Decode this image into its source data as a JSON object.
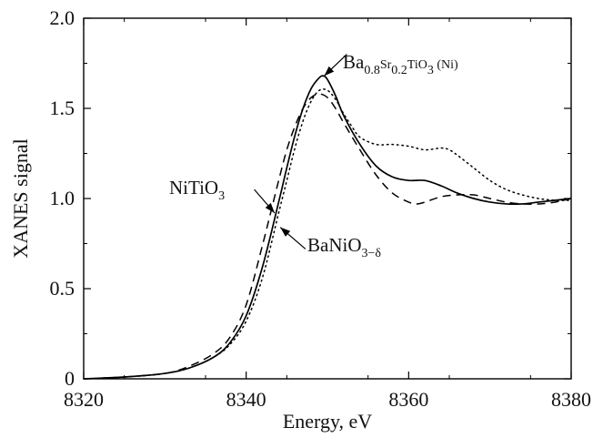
{
  "chart_data": {
    "type": "line",
    "xlabel": "Energy, eV",
    "ylabel": "XANES signal",
    "xlim": [
      8320,
      8380
    ],
    "ylim": [
      0,
      2.0
    ],
    "xticks": [
      8320,
      8340,
      8360,
      8380
    ],
    "yticks": [
      0,
      0.5,
      1.0,
      1.5,
      2.0
    ],
    "xtick_labels": [
      "8320",
      "8340",
      "8360",
      "8380"
    ],
    "ytick_labels": [
      "0",
      "0.5",
      "1.0",
      "1.5",
      "2.0"
    ],
    "grid": false,
    "legend": "none",
    "series": [
      {
        "name": "Ba0.8Sr0.2TiO3 (Ni)",
        "style": "solid",
        "color": "#000000",
        "x": [
          8320,
          8325,
          8330,
          8333,
          8336,
          8338,
          8340,
          8342,
          8344,
          8345,
          8346,
          8347,
          8348,
          8349,
          8349.5,
          8350,
          8351,
          8352,
          8354,
          8356,
          8358,
          8360,
          8362,
          8364,
          8366,
          8368,
          8370,
          8372,
          8374,
          8376,
          8378,
          8380
        ],
        "y": [
          0.0,
          0.01,
          0.03,
          0.06,
          0.12,
          0.2,
          0.35,
          0.62,
          0.98,
          1.17,
          1.35,
          1.5,
          1.61,
          1.67,
          1.68,
          1.66,
          1.57,
          1.46,
          1.3,
          1.18,
          1.12,
          1.1,
          1.1,
          1.07,
          1.03,
          1.0,
          0.98,
          0.97,
          0.97,
          0.98,
          0.99,
          1.0
        ]
      },
      {
        "name": "NiTiO3",
        "style": "dashed",
        "color": "#000000",
        "x": [
          8320,
          8325,
          8330,
          8333,
          8336,
          8338,
          8340,
          8342,
          8344,
          8345,
          8346,
          8347,
          8348,
          8349,
          8350,
          8351,
          8352,
          8354,
          8356,
          8358,
          8360,
          8361,
          8362,
          8364,
          8366,
          8368,
          8370,
          8372,
          8374,
          8376,
          8378,
          8380
        ],
        "y": [
          0.0,
          0.01,
          0.03,
          0.07,
          0.14,
          0.23,
          0.41,
          0.74,
          1.1,
          1.27,
          1.4,
          1.5,
          1.56,
          1.58,
          1.56,
          1.5,
          1.42,
          1.27,
          1.13,
          1.03,
          0.98,
          0.97,
          0.98,
          1.01,
          1.02,
          1.02,
          1.0,
          0.98,
          0.97,
          0.97,
          0.98,
          1.0
        ]
      },
      {
        "name": "BaNiO3−δ",
        "style": "dotted",
        "color": "#000000",
        "x": [
          8320,
          8325,
          8330,
          8333,
          8336,
          8338,
          8340,
          8342,
          8344,
          8345,
          8346,
          8347,
          8348,
          8349,
          8350,
          8351,
          8352,
          8353,
          8354,
          8356,
          8358,
          8360,
          8362,
          8364,
          8365,
          8366,
          8368,
          8370,
          8372,
          8374,
          8376,
          8378,
          8380
        ],
        "y": [
          0.0,
          0.01,
          0.03,
          0.06,
          0.12,
          0.19,
          0.32,
          0.56,
          0.92,
          1.1,
          1.28,
          1.43,
          1.54,
          1.6,
          1.6,
          1.55,
          1.47,
          1.4,
          1.34,
          1.3,
          1.3,
          1.29,
          1.27,
          1.28,
          1.27,
          1.24,
          1.17,
          1.1,
          1.05,
          1.02,
          1.0,
          0.99,
          0.99
        ]
      }
    ],
    "annotations": [
      {
        "series": "Ba0.8Sr0.2TiO3 (Ni)",
        "text_main": "Ba",
        "sub1": "0.8",
        "text_mid": "Sr",
        "sub2": "0.2",
        "text_mid2": "TiO",
        "sub3": "3",
        "text_end": " (Ni)",
        "arrow_to": [
          8349.6,
          1.68
        ],
        "arrow_from": [
          8352.4,
          1.8
        ]
      },
      {
        "series": "NiTiO3",
        "text_main": "NiTiO",
        "sub1": "3",
        "arrow_to": [
          8343.5,
          0.92
        ],
        "arrow_from": [
          8341.0,
          1.05
        ]
      },
      {
        "series": "BaNiO3−δ",
        "text_main": "BaNiO",
        "sub1": "3−δ",
        "arrow_to": [
          8344.2,
          0.84
        ],
        "arrow_from": [
          8347.3,
          0.72
        ]
      }
    ]
  }
}
